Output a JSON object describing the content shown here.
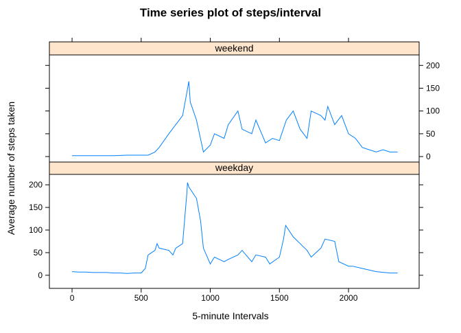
{
  "title": "Time series plot of steps/interval",
  "xlabel": "5-minute Intervals",
  "ylabel": "Average number of steps taken",
  "chart_data": [
    {
      "type": "line",
      "title": "weekend",
      "color": "#0080ff",
      "strip_color": "#ffe5cc",
      "xlim": [
        -164,
        2511
      ],
      "xticks": [
        0,
        500,
        1000,
        1500,
        2000
      ],
      "ylim": [
        -12,
        223
      ],
      "yticks": [
        0,
        50,
        100,
        150,
        200
      ],
      "ytick_labels_side": "right",
      "x": [
        0,
        100,
        200,
        300,
        400,
        500,
        550,
        600,
        630,
        700,
        750,
        800,
        830,
        845,
        855,
        900,
        950,
        1000,
        1030,
        1100,
        1130,
        1200,
        1230,
        1300,
        1330,
        1400,
        1450,
        1500,
        1550,
        1600,
        1650,
        1700,
        1730,
        1800,
        1830,
        1850,
        1900,
        1950,
        2000,
        2050,
        2100,
        2150,
        2200,
        2250,
        2300,
        2355
      ],
      "values": [
        2,
        2,
        2,
        2,
        3,
        3,
        3,
        10,
        20,
        50,
        70,
        90,
        140,
        165,
        120,
        80,
        10,
        25,
        50,
        40,
        70,
        100,
        60,
        50,
        80,
        30,
        40,
        35,
        80,
        100,
        60,
        40,
        100,
        90,
        80,
        110,
        70,
        90,
        50,
        40,
        20,
        15,
        10,
        15,
        10,
        10
      ]
    },
    {
      "type": "line",
      "title": "weekday",
      "color": "#0080ff",
      "strip_color": "#ffe5cc",
      "xlim": [
        -164,
        2511
      ],
      "xticks": [
        0,
        500,
        1000,
        1500,
        2000
      ],
      "ylim": [
        -29,
        223
      ],
      "yticks": [
        0,
        50,
        100,
        150,
        200
      ],
      "ytick_labels_side": "left",
      "x": [
        0,
        50,
        100,
        150,
        200,
        250,
        300,
        350,
        400,
        450,
        500,
        530,
        550,
        600,
        615,
        630,
        700,
        730,
        750,
        800,
        830,
        835,
        845,
        900,
        930,
        950,
        1000,
        1030,
        1100,
        1130,
        1200,
        1230,
        1300,
        1330,
        1400,
        1430,
        1500,
        1530,
        1545,
        1600,
        1650,
        1700,
        1730,
        1800,
        1830,
        1900,
        1930,
        2000,
        2030,
        2100,
        2200,
        2300,
        2355
      ],
      "values": [
        8,
        7,
        7,
        6,
        6,
        6,
        5,
        5,
        4,
        5,
        5,
        15,
        45,
        55,
        70,
        60,
        55,
        45,
        60,
        70,
        180,
        205,
        195,
        170,
        120,
        60,
        25,
        40,
        30,
        35,
        45,
        55,
        30,
        45,
        40,
        25,
        40,
        80,
        110,
        85,
        70,
        55,
        40,
        60,
        80,
        75,
        30,
        20,
        20,
        15,
        8,
        5,
        5
      ]
    }
  ]
}
